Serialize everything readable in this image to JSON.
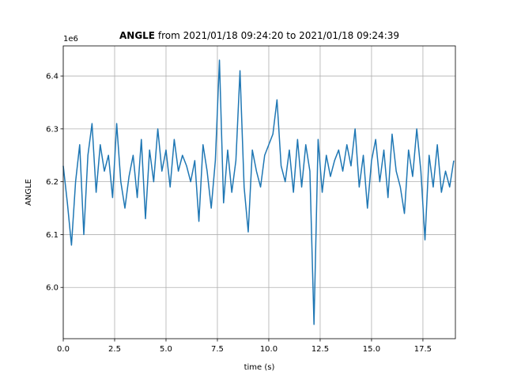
{
  "chart_data": {
    "type": "line",
    "title": {
      "bold": "ANGLE",
      "rest": "from 2021/01/18 09:24:20 to 2021/01/18 09:24:39"
    },
    "xlabel": "time (s)",
    "ylabel": "ANGLE",
    "offset_label": "1e6",
    "color": "#1f77b4",
    "grid": true,
    "xlim": [
      0,
      19.08
    ],
    "ylim": [
      5.903,
      6.457
    ],
    "xticks": [
      {
        "value": 0,
        "label": "0.0"
      },
      2.5,
      {
        "value": 5,
        "label": "5.0"
      },
      7.5,
      {
        "value": 10,
        "label": "10.0"
      },
      12.5,
      {
        "value": 15,
        "label": "15.0"
      },
      17.5
    ],
    "yticks": [
      {
        "value": 6,
        "label": "6.0"
      },
      6.1,
      6.2,
      6.3,
      6.4
    ],
    "x": [
      0,
      0.2,
      0.4,
      0.6,
      0.8,
      1,
      1.2,
      1.4,
      1.6,
      1.8,
      2,
      2.2,
      2.4,
      2.6,
      2.8,
      3,
      3.2,
      3.4,
      3.6,
      3.8,
      4,
      4.2,
      4.4,
      4.6,
      4.8,
      5,
      5.2,
      5.4,
      5.6,
      5.8,
      6,
      6.2,
      6.4,
      6.6,
      6.8,
      7,
      7.2,
      7.4,
      7.6,
      7.8,
      8,
      8.2,
      8.4,
      8.6,
      8.8,
      9,
      9.2,
      9.4,
      9.6,
      9.8,
      10,
      10.2,
      10.4,
      10.6,
      10.8,
      11,
      11.2,
      11.4,
      11.6,
      11.8,
      12,
      12.2,
      12.4,
      12.6,
      12.8,
      13,
      13.2,
      13.4,
      13.6,
      13.8,
      14,
      14.2,
      14.4,
      14.6,
      14.8,
      15,
      15.2,
      15.4,
      15.6,
      15.8,
      16,
      16.2,
      16.4,
      16.6,
      16.8,
      17,
      17.2,
      17.4,
      17.6,
      17.8,
      18,
      18.2,
      18.4,
      18.6,
      18.8,
      19
    ],
    "values": [
      6.23,
      6.16,
      6.08,
      6.2,
      6.27,
      6.1,
      6.25,
      6.31,
      6.18,
      6.27,
      6.22,
      6.25,
      6.17,
      6.31,
      6.2,
      6.15,
      6.21,
      6.25,
      6.17,
      6.28,
      6.13,
      6.26,
      6.2,
      6.3,
      6.22,
      6.26,
      6.19,
      6.28,
      6.22,
      6.25,
      6.23,
      6.2,
      6.24,
      6.125,
      6.27,
      6.22,
      6.15,
      6.24,
      6.43,
      6.16,
      6.26,
      6.18,
      6.24,
      6.41,
      6.19,
      6.105,
      6.26,
      6.22,
      6.19,
      6.25,
      6.27,
      6.29,
      6.355,
      6.23,
      6.2,
      6.26,
      6.18,
      6.28,
      6.19,
      6.27,
      6.22,
      5.93,
      6.28,
      6.18,
      6.25,
      6.21,
      6.24,
      6.26,
      6.22,
      6.27,
      6.23,
      6.3,
      6.19,
      6.25,
      6.15,
      6.24,
      6.28,
      6.2,
      6.26,
      6.17,
      6.29,
      6.22,
      6.19,
      6.14,
      6.26,
      6.21,
      6.3,
      6.22,
      6.09,
      6.25,
      6.19,
      6.27,
      6.18,
      6.22,
      6.19,
      6.24
    ]
  }
}
